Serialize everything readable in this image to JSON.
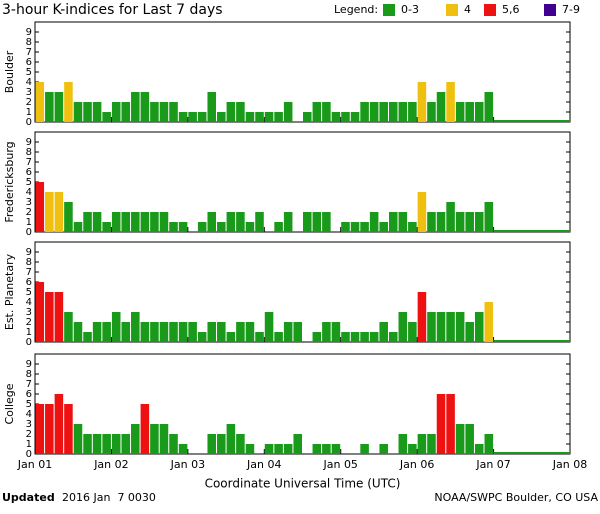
{
  "title": "3-hour K-indices for Last 7 days",
  "legend": {
    "title": "Legend:",
    "items": [
      {
        "label": "0-3",
        "color": "#1a9a1a",
        "range": [
          0,
          3
        ]
      },
      {
        "label": "4",
        "color": "#f0c010",
        "range": [
          4,
          4
        ]
      },
      {
        "label": "5,6",
        "color": "#ee1111",
        "range": [
          5,
          6
        ]
      },
      {
        "label": "7-9",
        "color": "#400090",
        "range": [
          7,
          9
        ]
      }
    ]
  },
  "chart_data": [
    {
      "type": "bar",
      "ylabel": "Boulder",
      "ylim": [
        0,
        10
      ],
      "yticks": [
        0,
        1,
        2,
        3,
        4,
        5,
        6,
        7,
        8,
        9
      ],
      "xlim": [
        0,
        56
      ],
      "values": [
        4,
        3,
        3,
        4,
        2,
        2,
        2,
        1,
        2,
        2,
        3,
        3,
        2,
        2,
        2,
        1,
        1,
        1,
        3,
        1,
        2,
        2,
        1,
        1,
        1,
        1,
        2,
        0,
        1,
        2,
        2,
        1,
        1,
        1,
        2,
        2,
        2,
        2,
        2,
        2,
        4,
        2,
        3,
        4,
        2,
        2,
        2,
        3
      ]
    },
    {
      "type": "bar",
      "ylabel": "Fredericksburg",
      "ylim": [
        0,
        10
      ],
      "yticks": [
        0,
        1,
        2,
        3,
        4,
        5,
        6,
        7,
        8,
        9
      ],
      "xlim": [
        0,
        56
      ],
      "values": [
        5,
        4,
        4,
        3,
        1,
        2,
        2,
        1,
        2,
        2,
        2,
        2,
        2,
        2,
        1,
        1,
        0,
        1,
        2,
        1,
        2,
        2,
        1,
        2,
        0,
        1,
        2,
        0,
        2,
        2,
        2,
        0,
        1,
        1,
        1,
        2,
        1,
        2,
        2,
        1,
        4,
        2,
        2,
        3,
        2,
        2,
        2,
        3
      ]
    },
    {
      "type": "bar",
      "ylabel": "Est. Planetary",
      "ylim": [
        0,
        10
      ],
      "yticks": [
        0,
        1,
        2,
        3,
        4,
        5,
        6,
        7,
        8,
        9
      ],
      "xlim": [
        0,
        56
      ],
      "values": [
        6,
        5,
        5,
        3,
        2,
        1,
        2,
        2,
        3,
        2,
        3,
        2,
        2,
        2,
        2,
        2,
        2,
        1,
        2,
        2,
        1,
        2,
        2,
        1,
        3,
        1,
        2,
        2,
        0,
        1,
        2,
        2,
        1,
        1,
        1,
        1,
        2,
        1,
        3,
        2,
        5,
        3,
        3,
        3,
        3,
        2,
        3,
        4
      ]
    },
    {
      "type": "bar",
      "ylabel": "College",
      "ylim": [
        0,
        10
      ],
      "yticks": [
        0,
        1,
        2,
        3,
        4,
        5,
        6,
        7,
        8,
        9
      ],
      "xlim": [
        0,
        56
      ],
      "values": [
        5,
        5,
        6,
        5,
        3,
        2,
        2,
        2,
        2,
        2,
        3,
        5,
        3,
        3,
        2,
        1,
        0,
        0,
        2,
        2,
        3,
        2,
        1,
        0,
        1,
        1,
        1,
        2,
        0,
        1,
        1,
        1,
        0,
        0,
        1,
        0,
        1,
        0,
        2,
        1,
        2,
        2,
        6,
        6,
        3,
        3,
        1,
        2
      ],
      "xticks": [
        {
          "value": 0,
          "label": "Jan 01"
        },
        {
          "value": 8,
          "label": "Jan 02"
        },
        {
          "value": 16,
          "label": "Jan 03"
        },
        {
          "value": 24,
          "label": "Jan 04"
        },
        {
          "value": 32,
          "label": "Jan 05"
        },
        {
          "value": 40,
          "label": "Jan 06"
        },
        {
          "value": 48,
          "label": "Jan 07"
        },
        {
          "value": 56,
          "label": "Jan 08"
        }
      ],
      "xlabel": "Coordinate Universal Time (UTC)"
    }
  ],
  "footer": {
    "updated_label": "Updated",
    "timestamp": "2016 Jan  7 0030",
    "credit": "NOAA/SWPC Boulder, CO USA"
  }
}
